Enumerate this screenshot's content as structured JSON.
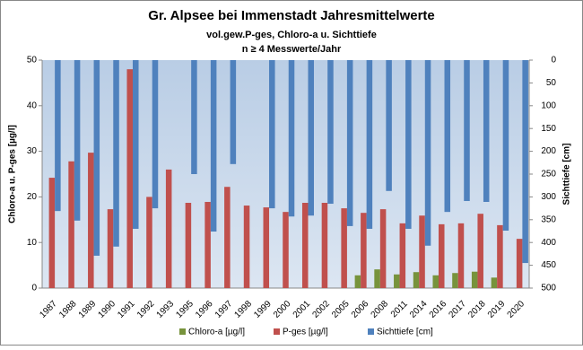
{
  "chart_data": {
    "type": "bar",
    "title": "Gr. Alpsee bei Immenstadt Jahresmittelwerte",
    "subtitle": [
      "vol.gew.P-ges, Chloro-a u. Sichttiefe",
      "n ≥ 4 Messwerte/Jahr"
    ],
    "y_label": "Chloro-a u. P-ges [µg/l]",
    "y2_label": "Sichttiefe [cm]",
    "categories": [
      "1987",
      "1988",
      "1989",
      "1990",
      "1991",
      "1992",
      "1993",
      "1995",
      "1996",
      "1997",
      "1998",
      "1999",
      "2000",
      "2001",
      "2002",
      "2005",
      "2006",
      "2008",
      "2011",
      "2014",
      "2016",
      "2017",
      "2018",
      "2019",
      "2020"
    ],
    "series": [
      {
        "name": "Chloro-a [µg/l]",
        "color": "#77933c",
        "values": [
          null,
          null,
          null,
          null,
          null,
          null,
          null,
          null,
          null,
          null,
          null,
          null,
          null,
          null,
          null,
          null,
          2.8,
          4.1,
          3.0,
          3.5,
          2.8,
          3.3,
          3.6,
          2.3,
          null
        ]
      },
      {
        "name": "P-ges [µg/l]",
        "color": "#c0504d",
        "values": [
          24.2,
          27.8,
          29.7,
          17.3,
          48,
          20,
          26,
          18.7,
          18.9,
          22.2,
          18.1,
          17.7,
          16.7,
          18.7,
          18.7,
          17.5,
          16.5,
          17.3,
          14.2,
          15.9,
          14.0,
          14.2,
          16.3,
          13.8,
          10.8
        ]
      },
      {
        "name": "Sichttiefe [cm]",
        "color": "#4f81bd",
        "axis": "y2",
        "values": [
          331,
          352,
          429,
          409,
          370,
          325,
          null,
          250,
          376,
          228,
          null,
          325,
          343,
          341,
          315,
          364,
          370,
          287,
          370,
          407,
          333,
          309,
          311,
          374,
          445
        ]
      }
    ],
    "ylim": [
      0,
      50
    ],
    "yticks": [
      0,
      10,
      20,
      30,
      40,
      50
    ],
    "y2lim": [
      0,
      500
    ],
    "y2ticks": [
      0,
      50,
      100,
      150,
      200,
      250,
      300,
      350,
      400,
      450,
      500
    ],
    "y2_inverted": true,
    "legend": "bottom"
  }
}
